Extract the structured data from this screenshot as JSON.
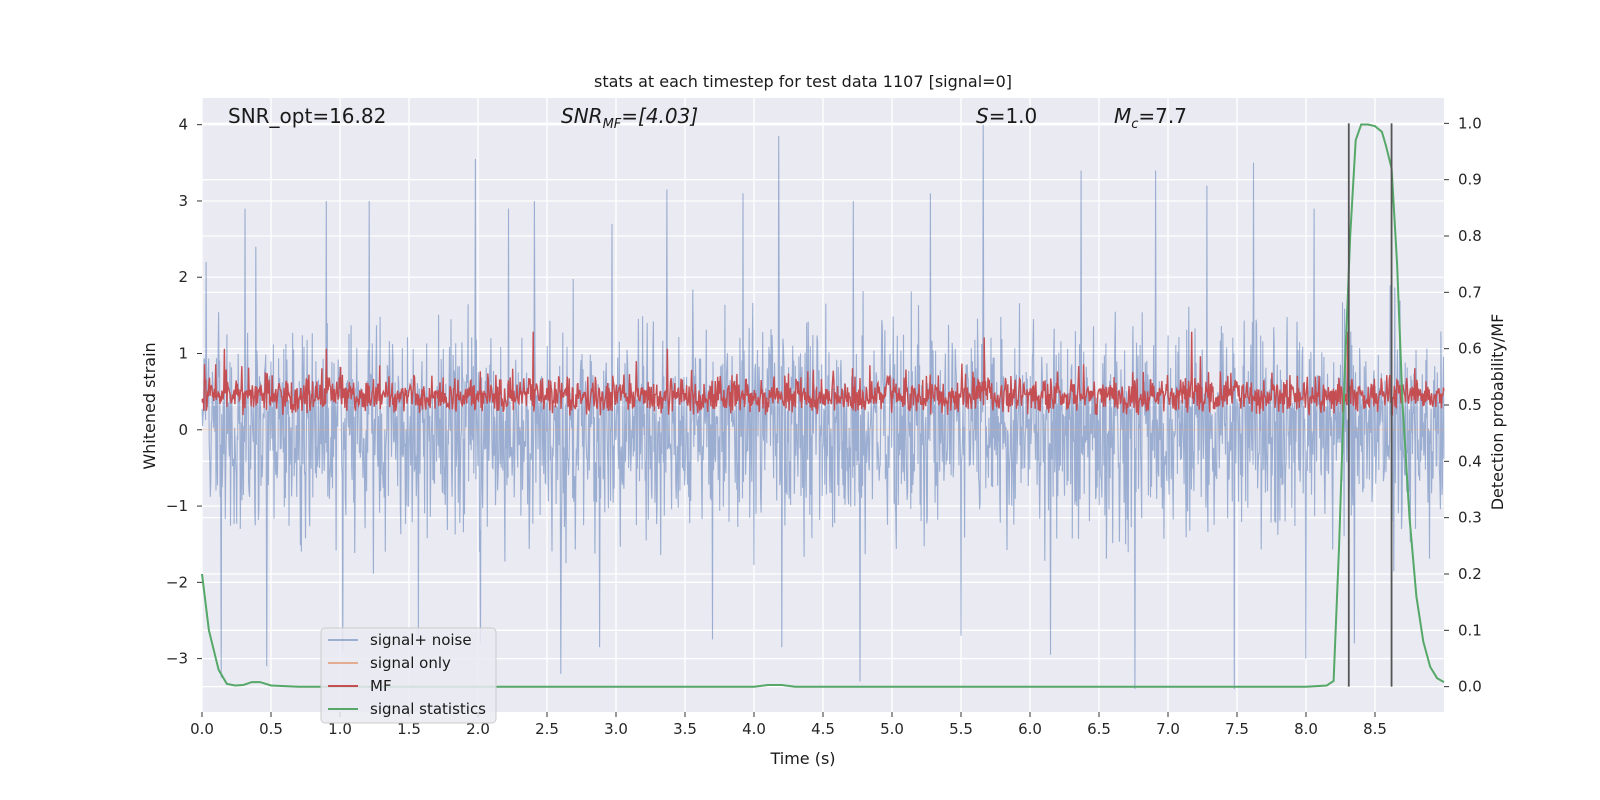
{
  "chart_data": {
    "type": "line",
    "title": "stats at each timestep for test data 1107 [signal=0]",
    "xlabel": "Time (s)",
    "ylabel": "Whitened strain",
    "y2label": "Detection probability/MF",
    "xlim": [
      0,
      9
    ],
    "ylim": [
      -3.7,
      4.35
    ],
    "y2lim": [
      -0.045,
      1.045
    ],
    "xticks": [
      0.0,
      0.5,
      1.0,
      1.5,
      2.0,
      2.5,
      3.0,
      3.5,
      4.0,
      4.5,
      5.0,
      5.5,
      6.0,
      6.5,
      7.0,
      7.5,
      8.0,
      8.5
    ],
    "xtick_labels": [
      "0.0",
      "0.5",
      "1.0",
      "1.5",
      "2.0",
      "2.5",
      "3.0",
      "3.5",
      "4.0",
      "4.5",
      "5.0",
      "5.5",
      "6.0",
      "6.5",
      "7.0",
      "7.5",
      "8.0",
      "8.5"
    ],
    "yticks": [
      -3,
      -2,
      -1,
      0,
      1,
      2,
      3,
      4
    ],
    "ytick_labels": [
      "−3",
      "−2",
      "−1",
      "0",
      "1",
      "2",
      "3",
      "4"
    ],
    "y2ticks": [
      0.0,
      0.1,
      0.2,
      0.3,
      0.4,
      0.5,
      0.6,
      0.7,
      0.8,
      0.9,
      1.0
    ],
    "y2tick_labels": [
      "0.0",
      "0.1",
      "0.2",
      "0.3",
      "0.4",
      "0.5",
      "0.6",
      "0.7",
      "0.8",
      "0.9",
      "1.0"
    ],
    "annotations": {
      "snr_opt": "SNR_opt=16.82",
      "snr_mf_name": "SNR",
      "snr_mf_sub": "MF",
      "snr_mf_value": "=[4.03]",
      "s_name": "S",
      "s_value": "=1.0",
      "mc_name": "M",
      "mc_sub": "c",
      "mc_value": "=7.7"
    },
    "legend": {
      "position": "lower-left",
      "entries": [
        "signal+ noise",
        "signal only",
        "MF",
        "signal statistics"
      ]
    },
    "series": [
      {
        "name": "signal+ noise",
        "color": "#4c72b0",
        "opacity": 0.5,
        "axis": "left",
        "description_stats": {
          "envelope_min": -3.4,
          "envelope_max": 4.0,
          "typical_low": -2.0,
          "typical_high": 2.2
        },
        "peaks": [
          {
            "x": 0.03,
            "y": 2.2
          },
          {
            "x": 0.31,
            "y": 2.9
          },
          {
            "x": 0.39,
            "y": 2.4
          },
          {
            "x": 0.9,
            "y": 3.0
          },
          {
            "x": 1.21,
            "y": 3.0
          },
          {
            "x": 1.98,
            "y": 3.55
          },
          {
            "x": 2.22,
            "y": 2.9
          },
          {
            "x": 2.41,
            "y": 3.0
          },
          {
            "x": 2.97,
            "y": 2.7
          },
          {
            "x": 3.37,
            "y": 3.15
          },
          {
            "x": 3.92,
            "y": 3.1
          },
          {
            "x": 4.18,
            "y": 3.85
          },
          {
            "x": 4.72,
            "y": 3.0
          },
          {
            "x": 5.28,
            "y": 3.1
          },
          {
            "x": 5.66,
            "y": 4.0
          },
          {
            "x": 6.37,
            "y": 3.4
          },
          {
            "x": 6.91,
            "y": 3.4
          },
          {
            "x": 7.28,
            "y": 3.2
          },
          {
            "x": 7.62,
            "y": 3.5
          },
          {
            "x": 8.06,
            "y": 2.9
          }
        ],
        "troughs": [
          {
            "x": 0.14,
            "y": -3.25
          },
          {
            "x": 0.47,
            "y": -3.1
          },
          {
            "x": 1.02,
            "y": -2.9
          },
          {
            "x": 1.57,
            "y": -2.7
          },
          {
            "x": 2.02,
            "y": -2.8
          },
          {
            "x": 2.6,
            "y": -3.2
          },
          {
            "x": 2.88,
            "y": -2.85
          },
          {
            "x": 3.7,
            "y": -2.75
          },
          {
            "x": 4.2,
            "y": -2.85
          },
          {
            "x": 4.77,
            "y": -3.3
          },
          {
            "x": 5.5,
            "y": -2.7
          },
          {
            "x": 6.15,
            "y": -2.95
          },
          {
            "x": 6.76,
            "y": -3.4
          },
          {
            "x": 7.48,
            "y": -3.4
          },
          {
            "x": 8.0,
            "y": -3.0
          },
          {
            "x": 8.35,
            "y": -2.8
          }
        ]
      },
      {
        "name": "signal only",
        "color": "#dd8452",
        "axis": "left",
        "x": [
          0,
          9
        ],
        "y": [
          0,
          0
        ]
      },
      {
        "name": "MF",
        "color": "#c44e52",
        "axis": "right",
        "baseline": 0.5,
        "description_stats": {
          "typical_low": 0.47,
          "typical_high": 0.58
        },
        "peaks": [
          {
            "x": 0.16,
            "y": 0.6
          },
          {
            "x": 0.9,
            "y": 0.6
          },
          {
            "x": 2.4,
            "y": 0.63
          },
          {
            "x": 3.37,
            "y": 0.6
          },
          {
            "x": 5.67,
            "y": 0.62
          },
          {
            "x": 7.17,
            "y": 0.63
          },
          {
            "x": 8.3,
            "y": 0.63
          }
        ]
      },
      {
        "name": "signal statistics",
        "color": "#55a868",
        "axis": "right",
        "x": [
          0.0,
          0.05,
          0.12,
          0.18,
          0.24,
          0.3,
          0.36,
          0.42,
          0.5,
          0.7,
          1.0,
          2.0,
          3.0,
          4.0,
          4.1,
          4.2,
          4.3,
          5.0,
          6.0,
          7.0,
          8.0,
          8.15,
          8.2,
          8.24,
          8.28,
          8.32,
          8.36,
          8.4,
          8.45,
          8.5,
          8.55,
          8.58,
          8.62,
          8.66,
          8.7,
          8.75,
          8.8,
          8.85,
          8.9,
          8.95,
          9.0
        ],
        "y": [
          0.2,
          0.1,
          0.03,
          0.005,
          0.002,
          0.003,
          0.008,
          0.008,
          0.002,
          0.0,
          0.0,
          0.0,
          0.0,
          0.0,
          0.003,
          0.003,
          0.0,
          0.0,
          0.0,
          0.0,
          0.0,
          0.002,
          0.01,
          0.25,
          0.55,
          0.8,
          0.97,
          0.998,
          0.998,
          0.995,
          0.985,
          0.96,
          0.92,
          0.75,
          0.5,
          0.3,
          0.16,
          0.08,
          0.035,
          0.015,
          0.008
        ]
      }
    ],
    "vlines": [
      {
        "x": 8.31,
        "ymin": 0.0,
        "ymax": 1.0,
        "color": "#555555"
      },
      {
        "x": 8.62,
        "ymin": 0.0,
        "ymax": 1.0,
        "color": "#555555"
      }
    ]
  }
}
